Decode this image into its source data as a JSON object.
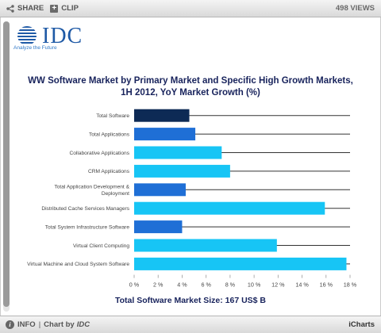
{
  "toolbar": {
    "share_label": "SHARE",
    "clip_label": "CLIP",
    "views_label": "498 VIEWS"
  },
  "logo": {
    "name": "IDC",
    "tagline": "Analyze the Future"
  },
  "chart_data": {
    "type": "bar",
    "orientation": "horizontal",
    "title": "WW Software Market by Primary Market and Specific High Growth Markets, 1H 2012, YoY Market Growth (%)",
    "title_lines": [
      "WW Software Market by Primary Market and Specific High Growth Markets,",
      "1H 2012, YoY Market Growth (%)"
    ],
    "categories": [
      "Total Software",
      "Total Applications",
      "Collaborative Applications",
      "CRM Applications",
      "Total Application Development & Deployment",
      "Distributed Cache Services Managers",
      "Total System Infrastructure Software",
      "Virtual Client Computing",
      "Virtual Machine and Cloud System Software"
    ],
    "category_lines": [
      [
        "Total Software"
      ],
      [
        "Total Applications"
      ],
      [
        "Collaborative Applications"
      ],
      [
        "CRM Applications"
      ],
      [
        "Total Application Development &",
        "Deployment"
      ],
      [
        "Distributed Cache Services Managers"
      ],
      [
        "Total System Infrastructure Software"
      ],
      [
        "Virtual Client Computing"
      ],
      [
        "Virtual Machine and Cloud System Software"
      ]
    ],
    "values": [
      4.6,
      5.1,
      7.3,
      8.0,
      4.3,
      15.9,
      4.0,
      11.9,
      17.7
    ],
    "bar_colors": [
      "#0d2a55",
      "#1f6fd6",
      "#17c5f5",
      "#17c5f5",
      "#1f6fd6",
      "#17c5f5",
      "#1f6fd6",
      "#17c5f5",
      "#17c5f5"
    ],
    "xlim": [
      0,
      18
    ],
    "xticks": [
      "0 %",
      "2 %",
      "4 %",
      "6 %",
      "8 %",
      "10 %",
      "12 %",
      "14 %",
      "16 %",
      "18 %"
    ],
    "grid": false,
    "legend": "none",
    "footnote": "Total Software Market Size: 167 US$ B"
  },
  "bottom": {
    "info_label": "INFO",
    "chart_by_label": "Chart by",
    "brand": "IDC",
    "provider": "iCharts"
  }
}
